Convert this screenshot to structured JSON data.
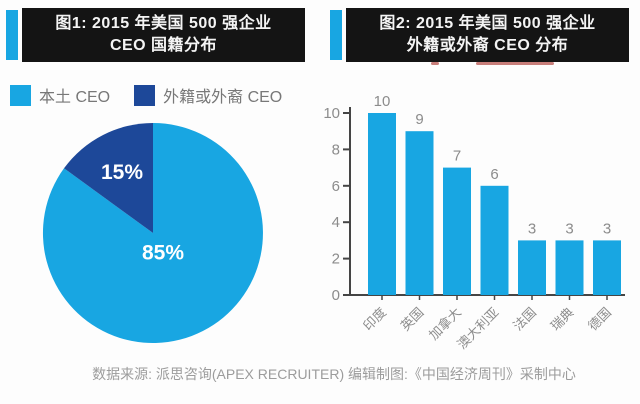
{
  "colors": {
    "accent": "#18a6e2",
    "dark-blue": "#1d4899",
    "title-bg": "#141414",
    "title-text": "#f4f4f4",
    "legend-text": "#787878",
    "axis-text": "#8c8c8c",
    "axis-line": "#454545",
    "caption-text": "#9c9c9c",
    "red-mark": "#b5534e",
    "bg": "#fdfdfd",
    "pie-label": "#ffffff"
  },
  "figure1": {
    "title_line1": "图1: 2015 年美国 500 强企业",
    "title_line2": "CEO 国籍分布",
    "legend": [
      {
        "label": "本土 CEO"
      },
      {
        "label": "外籍或外裔 CEO"
      }
    ]
  },
  "figure2": {
    "title_line1": "图2: 2015 年美国 500 强企业",
    "title_line2": "外籍或外裔 CEO 分布"
  },
  "caption": "数据来源: 派思咨询(APEX RECRUITER) 编辑制图:《中国经济周刊》采制中心",
  "chart_data": [
    {
      "type": "pie",
      "title": "图1: 2015年美国500强企业CEO国籍分布",
      "slices": [
        {
          "label": "本土 CEO",
          "value": 85,
          "display": "85%",
          "color": "#18a6e2"
        },
        {
          "label": "外籍或外裔 CEO",
          "value": 15,
          "display": "15%",
          "color": "#1d4899"
        }
      ],
      "start_angle_deg": 90,
      "direction": "clockwise",
      "legend_position": "top-left"
    },
    {
      "type": "bar",
      "title": "图2: 2015年美国500强企业外籍或外裔CEO分布",
      "categories": [
        "印度",
        "英国",
        "加拿大",
        "澳大利亚",
        "法国",
        "瑞典",
        "德国"
      ],
      "values": [
        10,
        9,
        7,
        6,
        3,
        3,
        3
      ],
      "bar_color": "#18a6e2",
      "ylim": [
        0,
        10
      ],
      "ytick_step": 2,
      "grid": false,
      "value_labels_shown": true,
      "xlabel": "",
      "ylabel": ""
    }
  ]
}
